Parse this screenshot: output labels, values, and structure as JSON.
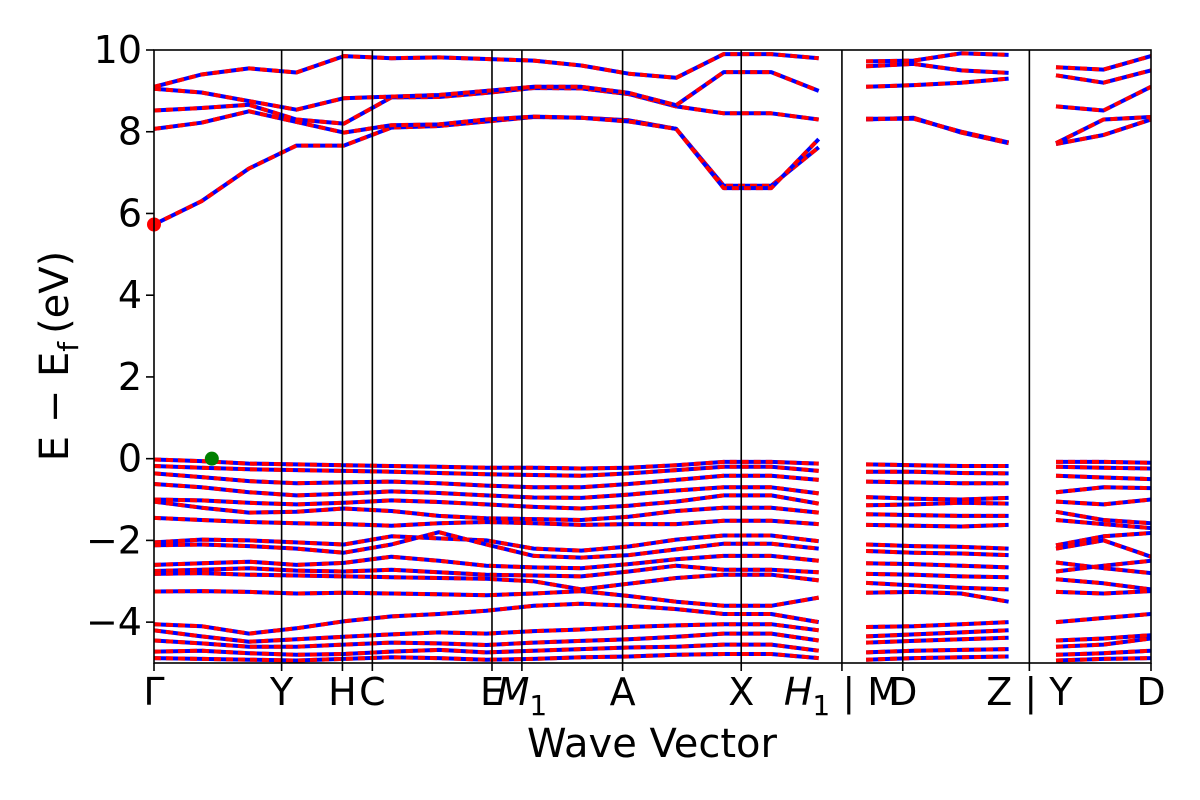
{
  "chart_data": {
    "type": "line",
    "xlabel": "Wave Vector",
    "ylabel": "E − E_f (eV)",
    "ylabel_parts": {
      "main": "E − E",
      "subscript": "f",
      "unit": "(eV)"
    },
    "ylim": [
      -5,
      10
    ],
    "yticks": [
      {
        "value": -4,
        "label": "−4"
      },
      {
        "value": -2,
        "label": "−2"
      },
      {
        "value": 0,
        "label": "0"
      },
      {
        "value": 2,
        "label": "2"
      },
      {
        "value": 4,
        "label": "4"
      },
      {
        "value": 6,
        "label": "6"
      },
      {
        "value": 8,
        "label": "8"
      },
      {
        "value": 10,
        "label": "10"
      }
    ],
    "xlim": [
      0,
      1
    ],
    "kpath": [
      {
        "x": 0.0,
        "label": "Γ",
        "kind": "plain",
        "gridline": false
      },
      {
        "x": 0.128,
        "label": "Y",
        "kind": "plain",
        "gridline": true
      },
      {
        "x": 0.189,
        "label": "H",
        "kind": "plain",
        "gridline": true
      },
      {
        "x": 0.219,
        "label": "C",
        "kind": "plain",
        "gridline": true
      },
      {
        "x": 0.339,
        "label": "E",
        "kind": "plain",
        "gridline": true
      },
      {
        "x": 0.369,
        "label": "M",
        "sub": "1",
        "kind": "italic-sub",
        "gridline": true
      },
      {
        "x": 0.47,
        "label": "A",
        "kind": "plain",
        "gridline": true
      },
      {
        "x": 0.589,
        "label": "X",
        "kind": "plain",
        "gridline": true
      },
      {
        "x": 0.69,
        "label": "H",
        "sub": "1",
        "suffix": " | M",
        "kind": "italic-sub",
        "gridline": true
      },
      {
        "x": 0.751,
        "label": "D",
        "kind": "plain",
        "gridline": true
      },
      {
        "x": 0.878,
        "label": "Z | Y",
        "kind": "plain",
        "gridline": true
      },
      {
        "x": 1.0,
        "label": "D",
        "kind": "plain",
        "gridline": false
      }
    ],
    "segment_breaks": [
      0.69,
      0.878
    ],
    "series": [
      {
        "color": "#0000ff",
        "style": "solid"
      },
      {
        "color": "#ff0000",
        "style": "dashed"
      }
    ],
    "markers": [
      {
        "x": 0.0,
        "y": 5.73,
        "color": "#ff0000"
      },
      {
        "x": 0.058,
        "y": 0.0,
        "color": "#008000"
      }
    ],
    "bands": [
      {
        "y": [
          5.73,
          6.3,
          7.1,
          7.66,
          7.66,
          8.1,
          8.14,
          8.25,
          8.36,
          8.34,
          8.28,
          8.07,
          6.68,
          6.68,
          7.62,
          8.3,
          8.34,
          7.98,
          7.72,
          7.7,
          7.92,
          8.3
        ]
      },
      {
        "y": [
          8.07,
          8.22,
          8.5,
          8.24,
          7.98,
          8.16,
          8.18,
          8.3,
          8.37,
          8.34,
          8.25,
          8.07,
          6.62,
          6.62,
          7.82,
          8.32,
          8.32,
          8.0,
          7.74,
          7.72,
          8.3,
          8.36
        ]
      },
      {
        "y": [
          8.52,
          8.58,
          8.66,
          8.3,
          8.2,
          8.84,
          8.85,
          8.95,
          9.07,
          9.06,
          8.92,
          8.62,
          8.45,
          8.45,
          8.3,
          9.1,
          9.14,
          9.2,
          9.3,
          8.62,
          8.52,
          9.1
        ]
      },
      {
        "y": [
          9.05,
          8.96,
          8.75,
          8.54,
          8.82,
          8.86,
          8.9,
          9.0,
          9.1,
          9.1,
          8.95,
          8.65,
          9.46,
          9.46,
          9.0,
          9.6,
          9.66,
          9.5,
          9.44,
          9.38,
          9.2,
          9.5
        ]
      },
      {
        "y": [
          9.1,
          9.4,
          9.55,
          9.45,
          9.85,
          9.8,
          9.82,
          9.78,
          9.74,
          9.62,
          9.42,
          9.32,
          9.9,
          9.9,
          9.8,
          9.72,
          9.74,
          9.92,
          9.88,
          9.58,
          9.52,
          9.85
        ]
      },
      {
        "y": [
          -0.02,
          -0.06,
          -0.12,
          -0.14,
          -0.16,
          -0.18,
          -0.2,
          -0.22,
          -0.22,
          -0.24,
          -0.22,
          -0.16,
          -0.08,
          -0.08,
          -0.12,
          -0.14,
          -0.16,
          -0.18,
          -0.18,
          -0.08,
          -0.08,
          -0.1
        ]
      },
      {
        "y": [
          -0.18,
          -0.22,
          -0.26,
          -0.28,
          -0.3,
          -0.32,
          -0.35,
          -0.38,
          -0.4,
          -0.42,
          -0.36,
          -0.28,
          -0.2,
          -0.2,
          -0.3,
          -0.32,
          -0.32,
          -0.35,
          -0.36,
          -0.2,
          -0.22,
          -0.24
        ]
      },
      {
        "y": [
          -0.36,
          -0.45,
          -0.55,
          -0.6,
          -0.58,
          -0.56,
          -0.6,
          -0.66,
          -0.7,
          -0.7,
          -0.62,
          -0.52,
          -0.42,
          -0.42,
          -0.52,
          -0.56,
          -0.58,
          -0.6,
          -0.6,
          -0.42,
          -0.46,
          -0.5
        ]
      },
      {
        "y": [
          -0.62,
          -0.7,
          -0.82,
          -0.9,
          -0.86,
          -0.8,
          -0.84,
          -0.9,
          -0.95,
          -0.96,
          -0.88,
          -0.78,
          -0.7,
          -0.7,
          -0.85,
          -0.94,
          -0.98,
          -1.0,
          -0.96,
          -0.82,
          -0.7,
          -0.72
        ]
      },
      {
        "y": [
          -1.0,
          -1.02,
          -1.08,
          -1.12,
          -1.08,
          -1.02,
          -1.06,
          -1.12,
          -1.18,
          -1.22,
          -1.15,
          -1.05,
          -0.9,
          -0.9,
          -1.1,
          -1.14,
          -1.12,
          -1.08,
          -1.1,
          -1.05,
          -1.12,
          -1.0
        ]
      },
      {
        "y": [
          -1.05,
          -1.2,
          -1.32,
          -1.3,
          -1.22,
          -1.28,
          -1.4,
          -1.46,
          -1.48,
          -1.5,
          -1.42,
          -1.28,
          -1.2,
          -1.2,
          -1.32,
          -1.36,
          -1.38,
          -1.4,
          -1.4,
          -1.3,
          -1.5,
          -1.58
        ]
      },
      {
        "y": [
          -1.45,
          -1.5,
          -1.55,
          -1.58,
          -1.6,
          -1.64,
          -1.58,
          -1.55,
          -1.58,
          -1.62,
          -1.6,
          -1.6,
          -1.52,
          -1.52,
          -1.6,
          -1.62,
          -1.64,
          -1.66,
          -1.62,
          -1.5,
          -1.6,
          -1.7
        ]
      },
      {
        "y": [
          -2.05,
          -1.98,
          -2.0,
          -2.05,
          -2.1,
          -1.9,
          -1.95,
          -2.0,
          -2.2,
          -2.25,
          -2.15,
          -1.98,
          -1.88,
          -1.88,
          -2.02,
          -2.1,
          -2.14,
          -2.16,
          -2.2,
          -2.12,
          -1.9,
          -1.82
        ]
      },
      {
        "y": [
          -2.12,
          -2.1,
          -2.14,
          -2.2,
          -2.3,
          -2.1,
          -1.8,
          -2.1,
          -2.38,
          -2.42,
          -2.36,
          -2.22,
          -2.08,
          -2.08,
          -2.2,
          -2.26,
          -2.3,
          -2.32,
          -2.36,
          -2.2,
          -2.0,
          -2.4
        ]
      },
      {
        "y": [
          -2.6,
          -2.56,
          -2.52,
          -2.6,
          -2.55,
          -2.4,
          -2.5,
          -2.62,
          -2.66,
          -2.68,
          -2.58,
          -2.46,
          -2.38,
          -2.38,
          -2.5,
          -2.56,
          -2.58,
          -2.62,
          -2.66,
          -2.54,
          -2.68,
          -2.8
        ]
      },
      {
        "y": [
          -2.75,
          -2.72,
          -2.68,
          -2.74,
          -2.76,
          -2.72,
          -2.78,
          -2.84,
          -2.86,
          -2.88,
          -2.76,
          -2.62,
          -2.72,
          -2.72,
          -2.78,
          -2.82,
          -2.84,
          -2.88,
          -2.9,
          -2.76,
          -2.62,
          -2.5
        ]
      },
      {
        "y": [
          -2.82,
          -2.8,
          -2.84,
          -2.86,
          -2.88,
          -2.9,
          -2.92,
          -2.94,
          -3.0,
          -3.2,
          -3.06,
          -2.92,
          -2.84,
          -2.84,
          -2.98,
          -3.04,
          -3.1,
          -3.16,
          -3.2,
          -2.95,
          -3.05,
          -3.2
        ]
      },
      {
        "y": [
          -3.25,
          -3.24,
          -3.26,
          -3.3,
          -3.28,
          -3.3,
          -3.32,
          -3.34,
          -3.3,
          -3.24,
          -3.36,
          -3.5,
          -3.6,
          -3.6,
          -3.4,
          -3.28,
          -3.26,
          -3.3,
          -3.5,
          -3.26,
          -3.3,
          -3.24
        ]
      },
      {
        "y": [
          -4.05,
          -4.1,
          -4.28,
          -4.15,
          -3.98,
          -3.86,
          -3.8,
          -3.72,
          -3.6,
          -3.55,
          -3.6,
          -3.68,
          -3.8,
          -3.8,
          -4.0,
          -4.12,
          -4.1,
          -4.05,
          -4.0,
          -4.0,
          -3.9,
          -3.8
        ]
      },
      {
        "y": [
          -4.2,
          -4.35,
          -4.48,
          -4.42,
          -4.36,
          -4.3,
          -4.25,
          -4.28,
          -4.22,
          -4.18,
          -4.12,
          -4.08,
          -4.05,
          -4.05,
          -4.2,
          -4.35,
          -4.3,
          -4.25,
          -4.2,
          -4.45,
          -4.4,
          -4.32
        ]
      },
      {
        "y": [
          -4.45,
          -4.52,
          -4.6,
          -4.6,
          -4.55,
          -4.5,
          -4.52,
          -4.56,
          -4.5,
          -4.46,
          -4.42,
          -4.36,
          -4.28,
          -4.28,
          -4.45,
          -4.5,
          -4.46,
          -4.42,
          -4.38,
          -4.6,
          -4.55,
          -4.4
        ]
      },
      {
        "y": [
          -4.72,
          -4.7,
          -4.76,
          -4.8,
          -4.78,
          -4.72,
          -4.68,
          -4.74,
          -4.7,
          -4.66,
          -4.62,
          -4.6,
          -4.55,
          -4.55,
          -4.7,
          -4.74,
          -4.7,
          -4.68,
          -4.66,
          -4.8,
          -4.76,
          -4.7
        ]
      },
      {
        "y": [
          -4.88,
          -4.9,
          -4.92,
          -4.94,
          -4.9,
          -4.86,
          -4.88,
          -4.92,
          -4.9,
          -4.86,
          -4.84,
          -4.8,
          -4.78,
          -4.78,
          -4.88,
          -4.92,
          -4.88,
          -4.86,
          -4.84,
          -4.94,
          -4.9,
          -4.88
        ]
      }
    ]
  }
}
